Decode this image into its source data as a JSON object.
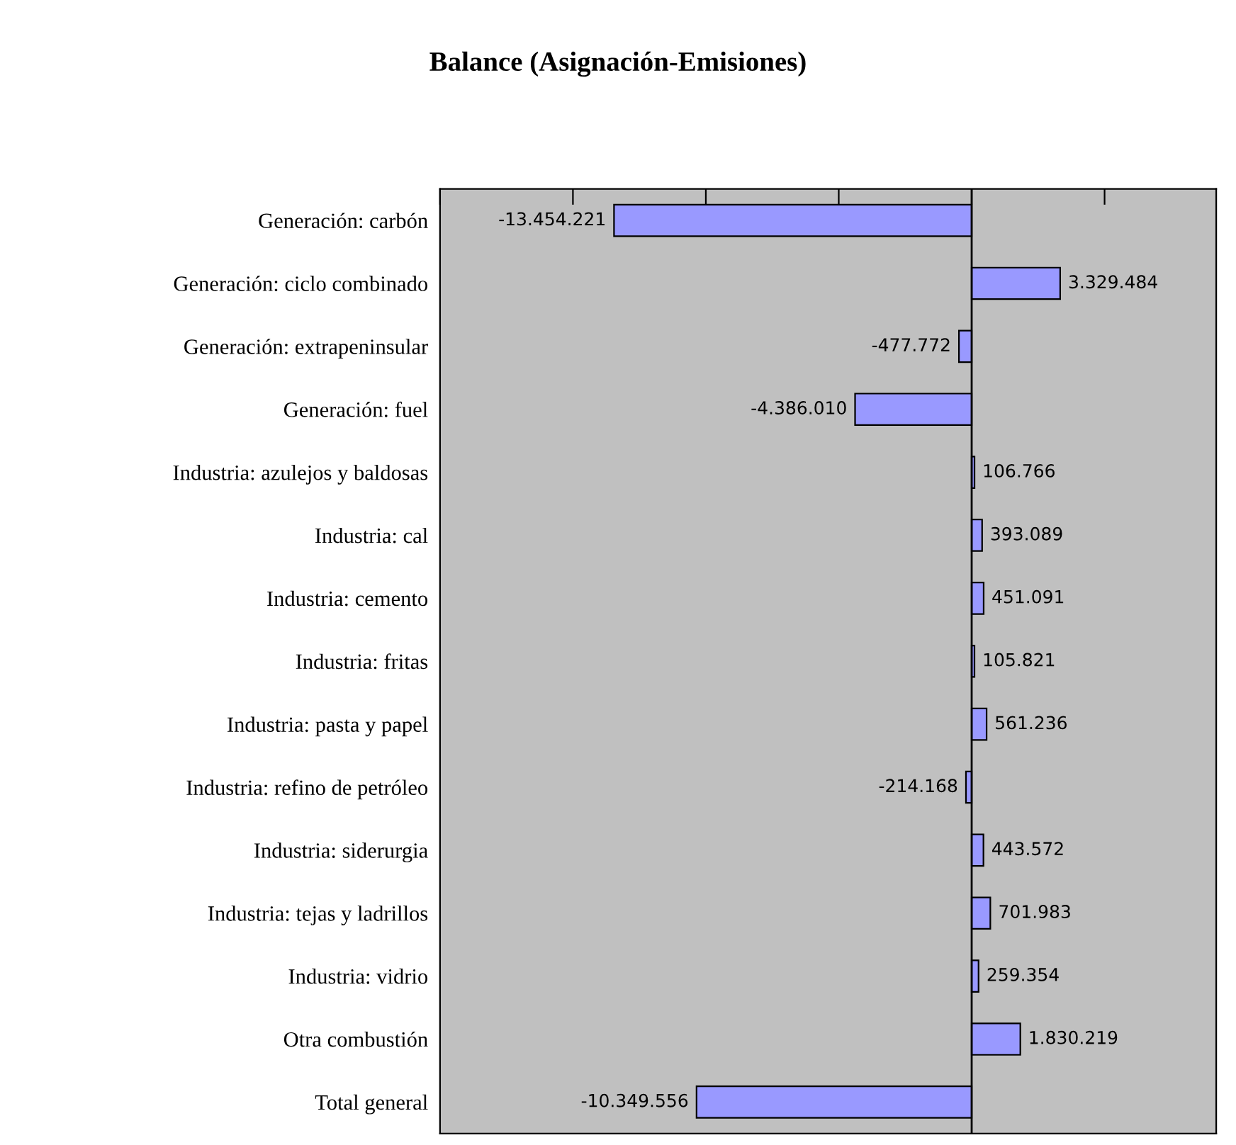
{
  "chart_data": {
    "type": "bar",
    "orientation": "horizontal",
    "title": "Balance (Asignación-Emisiones)",
    "categories": [
      "Generación: carbón",
      "Generación: ciclo combinado",
      "Generación: extrapeninsular",
      "Generación: fuel",
      "Industria: azulejos y baldosas",
      "Industria: cal",
      "Industria: cemento",
      "Industria: fritas",
      "Industria: pasta y papel",
      "Industria: refino de petróleo",
      "Industria: siderurgia",
      "Industria: tejas y ladrillos",
      "Industria: vidrio",
      "Otra combustión",
      "Total general"
    ],
    "values": [
      -13454221,
      3329484,
      -477772,
      -4386010,
      106766,
      393089,
      451091,
      105821,
      561236,
      -214168,
      443572,
      701983,
      259354,
      1830219,
      -10349556
    ],
    "value_labels": [
      "-13.454.221",
      "3.329.484",
      "-477.772",
      "-4.386.010",
      "106.766",
      "393.089",
      "451.091",
      "105.821",
      "561.236",
      "-214.168",
      "443.572",
      "701.983",
      "259.354",
      "1.830.219",
      "-10.349.556"
    ],
    "color": "#9999ff",
    "xlim": [
      -20000000,
      9200000
    ],
    "xticks": [
      {
        "value": -20000000,
        "label": null
      },
      {
        "value": -15000000,
        "label": null
      },
      {
        "value": -10000000,
        "label": null
      },
      {
        "value": -5000000,
        "label": null
      },
      {
        "value": 0,
        "label": null
      },
      {
        "value": 5000000,
        "label": null
      }
    ],
    "grid": false,
    "legend": false
  }
}
